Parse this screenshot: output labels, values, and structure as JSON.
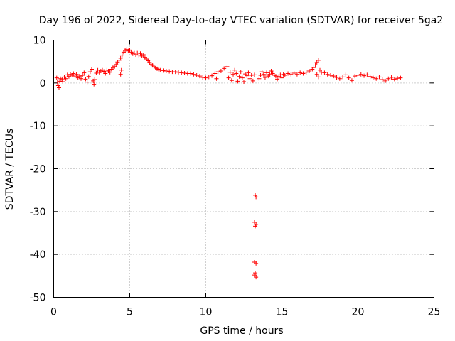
{
  "chart_data": {
    "type": "scatter",
    "title": "Day 196 of 2022, Sidereal Day-to-day VTEC variation (SDTVAR) for receiver 5ga2",
    "xlabel": "GPS time / hours",
    "ylabel": "SDTVAR / TECUs",
    "xlim": [
      0,
      25
    ],
    "ylim": [
      -50,
      10
    ],
    "xticks": [
      0,
      5,
      10,
      15,
      20,
      25
    ],
    "yticks": [
      -50,
      -40,
      -30,
      -20,
      -10,
      0,
      10
    ],
    "xtick_labels": [
      "0",
      "5",
      "10",
      "15",
      "20",
      "25"
    ],
    "ytick_labels": [
      "-50",
      "-40",
      "-30",
      "-20",
      "-10",
      "0",
      "10"
    ],
    "grid": true,
    "marker": "plus",
    "color": "#ff0000",
    "series": [
      {
        "name": "SDTVAR",
        "points": [
          [
            0.2,
            1.2
          ],
          [
            0.25,
            0.2
          ],
          [
            0.3,
            -0.6
          ],
          [
            0.35,
            -1.1
          ],
          [
            0.4,
            0.4
          ],
          [
            0.45,
            1.0
          ],
          [
            0.55,
            0.8
          ],
          [
            0.6,
            0.3
          ],
          [
            0.7,
            1.4
          ],
          [
            0.8,
            1.0
          ],
          [
            0.9,
            1.9
          ],
          [
            1.0,
            1.5
          ],
          [
            1.1,
            2.0
          ],
          [
            1.2,
            1.8
          ],
          [
            1.3,
            2.2
          ],
          [
            1.4,
            1.6
          ],
          [
            1.5,
            2.0
          ],
          [
            1.6,
            1.2
          ],
          [
            1.7,
            1.6
          ],
          [
            1.8,
            1.0
          ],
          [
            1.9,
            1.8
          ],
          [
            2.0,
            2.4
          ],
          [
            2.1,
            0.9
          ],
          [
            2.2,
            0.2
          ],
          [
            2.3,
            1.5
          ],
          [
            2.4,
            2.6
          ],
          [
            2.5,
            3.2
          ],
          [
            2.6,
            0.5
          ],
          [
            2.65,
            -0.3
          ],
          [
            2.7,
            0.8
          ],
          [
            2.8,
            2.3
          ],
          [
            2.9,
            3.0
          ],
          [
            3.0,
            2.5
          ],
          [
            3.1,
            2.8
          ],
          [
            3.2,
            3.0
          ],
          [
            3.3,
            2.7
          ],
          [
            3.4,
            2.2
          ],
          [
            3.5,
            3.0
          ],
          [
            3.6,
            2.8
          ],
          [
            3.7,
            2.5
          ],
          [
            3.8,
            3.2
          ],
          [
            3.9,
            3.6
          ],
          [
            4.0,
            3.8
          ],
          [
            4.1,
            4.3
          ],
          [
            4.2,
            4.9
          ],
          [
            4.3,
            5.3
          ],
          [
            4.4,
            5.8
          ],
          [
            4.4,
            2.0
          ],
          [
            4.45,
            3.0
          ],
          [
            4.5,
            6.5
          ],
          [
            4.6,
            7.2
          ],
          [
            4.7,
            7.6
          ],
          [
            4.8,
            7.8
          ],
          [
            4.9,
            7.5
          ],
          [
            5.0,
            7.7
          ],
          [
            5.1,
            7.2
          ],
          [
            5.2,
            6.8
          ],
          [
            5.3,
            7.0
          ],
          [
            5.4,
            6.6
          ],
          [
            5.5,
            7.0
          ],
          [
            5.6,
            6.5
          ],
          [
            5.7,
            6.9
          ],
          [
            5.8,
            6.3
          ],
          [
            5.9,
            6.6
          ],
          [
            6.0,
            6.0
          ],
          [
            6.1,
            5.6
          ],
          [
            6.2,
            5.2
          ],
          [
            6.3,
            4.8
          ],
          [
            6.4,
            4.4
          ],
          [
            6.5,
            4.1
          ],
          [
            6.6,
            3.8
          ],
          [
            6.7,
            3.5
          ],
          [
            6.8,
            3.3
          ],
          [
            6.9,
            3.2
          ],
          [
            7.0,
            3.0
          ],
          [
            7.2,
            2.9
          ],
          [
            7.4,
            2.8
          ],
          [
            7.6,
            2.7
          ],
          [
            7.8,
            2.6
          ],
          [
            8.0,
            2.6
          ],
          [
            8.2,
            2.5
          ],
          [
            8.4,
            2.4
          ],
          [
            8.6,
            2.3
          ],
          [
            8.8,
            2.2
          ],
          [
            9.0,
            2.2
          ],
          [
            9.2,
            2.0
          ],
          [
            9.4,
            1.8
          ],
          [
            9.6,
            1.6
          ],
          [
            9.8,
            1.3
          ],
          [
            10.0,
            1.2
          ],
          [
            10.2,
            1.4
          ],
          [
            10.4,
            1.7
          ],
          [
            10.6,
            2.2
          ],
          [
            10.7,
            1.0
          ],
          [
            10.8,
            2.6
          ],
          [
            11.0,
            2.8
          ],
          [
            11.2,
            3.4
          ],
          [
            11.4,
            3.8
          ],
          [
            11.5,
            1.2
          ],
          [
            11.6,
            2.5
          ],
          [
            11.7,
            0.6
          ],
          [
            11.8,
            2.0
          ],
          [
            11.9,
            3.0
          ],
          [
            12.0,
            2.2
          ],
          [
            12.1,
            0.4
          ],
          [
            12.2,
            1.5
          ],
          [
            12.3,
            2.6
          ],
          [
            12.4,
            1.2
          ],
          [
            12.5,
            0.3
          ],
          [
            12.6,
            2.1
          ],
          [
            12.7,
            1.7
          ],
          [
            12.8,
            2.4
          ],
          [
            12.9,
            1.0
          ],
          [
            13.0,
            1.8
          ],
          [
            13.1,
            0.5
          ],
          [
            13.2,
            1.9
          ],
          [
            13.25,
            -26.2
          ],
          [
            13.3,
            -26.6
          ],
          [
            13.2,
            -32.5
          ],
          [
            13.3,
            -33.0
          ],
          [
            13.25,
            -33.4
          ],
          [
            13.2,
            -41.8
          ],
          [
            13.3,
            -42.1
          ],
          [
            13.25,
            -44.3
          ],
          [
            13.2,
            -44.8
          ],
          [
            13.3,
            -45.3
          ],
          [
            13.5,
            1.0
          ],
          [
            13.6,
            1.8
          ],
          [
            13.7,
            2.6
          ],
          [
            13.8,
            2.0
          ],
          [
            13.9,
            1.3
          ],
          [
            14.0,
            2.4
          ],
          [
            14.1,
            1.6
          ],
          [
            14.2,
            2.0
          ],
          [
            14.3,
            2.8
          ],
          [
            14.4,
            2.2
          ],
          [
            14.5,
            1.8
          ],
          [
            14.6,
            1.6
          ],
          [
            14.7,
            0.9
          ],
          [
            14.8,
            1.5
          ],
          [
            14.9,
            1.9
          ],
          [
            15.0,
            1.2
          ],
          [
            15.1,
            2.0
          ],
          [
            15.2,
            1.8
          ],
          [
            15.4,
            2.2
          ],
          [
            15.6,
            2.0
          ],
          [
            15.8,
            2.3
          ],
          [
            16.0,
            2.0
          ],
          [
            16.2,
            2.4
          ],
          [
            16.4,
            2.2
          ],
          [
            16.6,
            2.5
          ],
          [
            16.8,
            2.8
          ],
          [
            17.0,
            3.2
          ],
          [
            17.1,
            3.6
          ],
          [
            17.2,
            4.2
          ],
          [
            17.3,
            4.8
          ],
          [
            17.4,
            5.3
          ],
          [
            17.3,
            2.0
          ],
          [
            17.4,
            1.4
          ],
          [
            17.5,
            3.0
          ],
          [
            17.6,
            2.5
          ],
          [
            17.8,
            2.4
          ],
          [
            18.0,
            2.0
          ],
          [
            18.2,
            1.8
          ],
          [
            18.4,
            1.6
          ],
          [
            18.6,
            1.3
          ],
          [
            18.8,
            1.0
          ],
          [
            19.0,
            1.4
          ],
          [
            19.2,
            1.9
          ],
          [
            19.4,
            1.2
          ],
          [
            19.6,
            0.6
          ],
          [
            19.8,
            1.6
          ],
          [
            20.0,
            1.8
          ],
          [
            20.2,
            2.0
          ],
          [
            20.4,
            1.7
          ],
          [
            20.6,
            1.9
          ],
          [
            20.8,
            1.5
          ],
          [
            21.0,
            1.2
          ],
          [
            21.2,
            1.0
          ],
          [
            21.4,
            1.4
          ],
          [
            21.6,
            0.8
          ],
          [
            21.8,
            0.5
          ],
          [
            22.0,
            1.0
          ],
          [
            22.2,
            1.3
          ],
          [
            22.4,
            0.9
          ],
          [
            22.6,
            1.1
          ],
          [
            22.8,
            1.2
          ]
        ]
      }
    ]
  }
}
